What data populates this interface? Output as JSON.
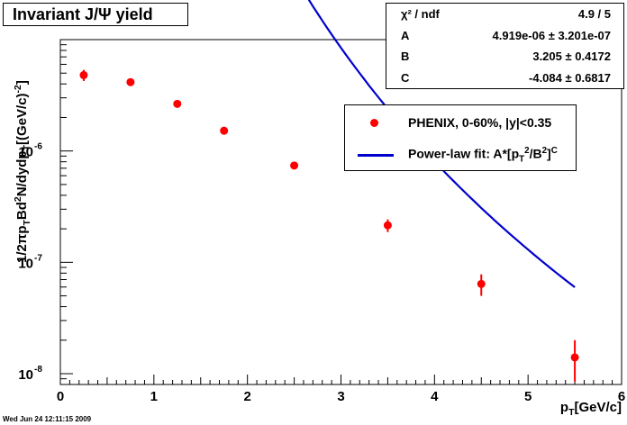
{
  "title": "Invariant J/Ψ yield",
  "stats": {
    "header_label": "χ² / ndf",
    "header_value": "4.9 / 5",
    "rows": [
      {
        "label": "A",
        "value": "4.919e-06 ± 3.201e-07"
      },
      {
        "label": "B",
        "value": "3.205 ± 0.4172"
      },
      {
        "label": "C",
        "value": "-4.084 ± 0.6817"
      }
    ]
  },
  "legend": {
    "data_label": "PHENIX, 0-60%, |y|<0.35",
    "fit_label_prefix": "Power-law fit: A*[p",
    "fit_label_mid": "/B",
    "fit_label_end": "]"
  },
  "footer": "Wed Jun 24 12:11:15 2009",
  "chart_data": {
    "type": "scatter",
    "title": "Invariant J/Ψ yield",
    "xlabel": "pT[GeV/c]",
    "ylabel": "1/2πpTBd²N/dydpT[(GeV/c)⁻²]",
    "xlim": [
      0,
      6
    ],
    "ylim": [
      8e-09,
      1e-05
    ],
    "yscale": "log",
    "x_ticks": [
      "0",
      "1",
      "2",
      "3",
      "4",
      "5",
      "6"
    ],
    "y_ticks": [
      {
        "value": 1e-08,
        "label": "10-8"
      },
      {
        "value": 1e-07,
        "label": "10-7"
      },
      {
        "value": 1e-06,
        "label": "10-6"
      }
    ],
    "series": [
      {
        "name": "PHENIX, 0-60%, |y|<0.35",
        "x": [
          0.25,
          0.75,
          1.25,
          1.75,
          2.5,
          3.5,
          4.5,
          5.5
        ],
        "y": [
          4.8e-06,
          4.15e-06,
          2.65e-06,
          1.52e-06,
          7.4e-07,
          2.15e-07,
          6.4e-08,
          1.4e-08
        ],
        "yerr_low": [
          5.5e-07,
          3e-07,
          1.5e-07,
          1.2e-07,
          4e-08,
          2.8e-08,
          1.4e-08,
          5.5e-09
        ],
        "yerr_high": [
          5.5e-07,
          3e-07,
          1.5e-07,
          1.2e-07,
          4e-08,
          2.8e-08,
          1.4e-08,
          6e-09
        ],
        "color": "#ff0000"
      },
      {
        "name": "Power-law fit: A*[pT²/B²]^C",
        "type": "line",
        "fit": {
          "A": 4.919e-06,
          "B": 3.205,
          "C": -4.084,
          "x_range": [
            0.25,
            5.5
          ]
        },
        "color": "#0000cc"
      }
    ]
  }
}
